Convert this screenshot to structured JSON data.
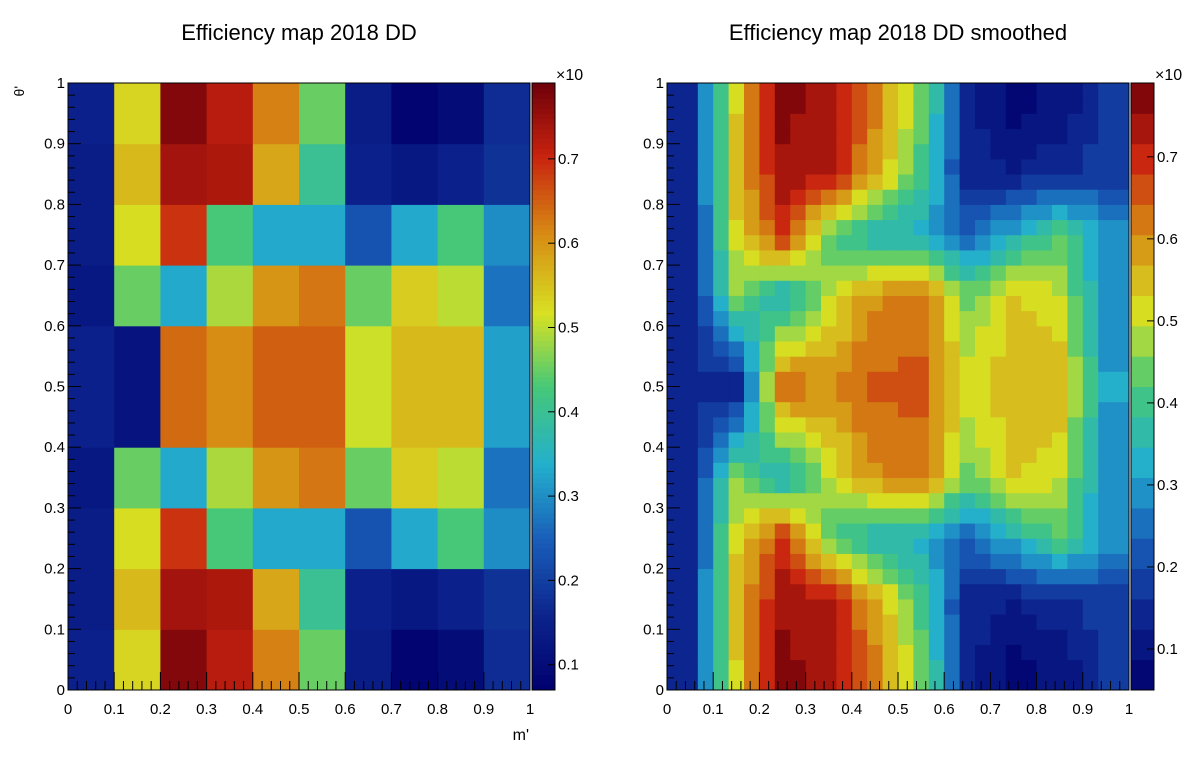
{
  "chart_data": [
    {
      "type": "heatmap",
      "title": "Efficiency map 2018 DD",
      "xlabel": "m'",
      "ylabel": "θ'",
      "xlim": [
        0,
        1
      ],
      "ylim": [
        0,
        1
      ],
      "x_ticks": [
        "0",
        "0.1",
        "0.2",
        "0.3",
        "0.4",
        "0.5",
        "0.6",
        "0.7",
        "0.8",
        "0.9",
        "1"
      ],
      "y_ticks": [
        "0",
        "0.1",
        "0.2",
        "0.3",
        "0.4",
        "0.5",
        "0.6",
        "0.7",
        "0.8",
        "0.9",
        "1"
      ],
      "colorbar": {
        "exponent_label": "×10",
        "ticks": [
          "0.1",
          "0.2",
          "0.3",
          "0.4",
          "0.5",
          "0.6",
          "0.7"
        ],
        "range": [
          0.07,
          0.79
        ]
      },
      "palette": "rainbow",
      "x_edges": [
        0,
        0.1,
        0.2,
        0.3,
        0.4,
        0.5,
        0.6,
        0.7,
        0.8,
        0.9,
        1.0
      ],
      "y_edges": [
        0,
        0.03,
        0.1,
        0.2,
        0.3,
        0.4,
        0.6,
        0.7,
        0.8,
        0.9,
        1.0
      ],
      "z": [
        [
          0.15,
          0.53,
          0.77,
          0.72,
          0.62,
          0.45,
          0.14,
          0.08,
          0.1,
          0.17
        ],
        [
          0.15,
          0.53,
          0.77,
          0.72,
          0.62,
          0.45,
          0.14,
          0.08,
          0.1,
          0.17
        ],
        [
          0.14,
          0.56,
          0.74,
          0.73,
          0.58,
          0.4,
          0.15,
          0.13,
          0.15,
          0.18
        ],
        [
          0.14,
          0.52,
          0.69,
          0.43,
          0.33,
          0.33,
          0.23,
          0.33,
          0.43,
          0.3
        ],
        [
          0.13,
          0.45,
          0.33,
          0.49,
          0.6,
          0.63,
          0.45,
          0.54,
          0.5,
          0.27
        ],
        [
          0.15,
          0.12,
          0.64,
          0.61,
          0.65,
          0.65,
          0.51,
          0.56,
          0.56,
          0.32
        ],
        [
          0.13,
          0.45,
          0.33,
          0.49,
          0.6,
          0.63,
          0.45,
          0.54,
          0.5,
          0.27
        ],
        [
          0.14,
          0.52,
          0.69,
          0.43,
          0.33,
          0.33,
          0.23,
          0.33,
          0.43,
          0.3
        ],
        [
          0.14,
          0.56,
          0.74,
          0.73,
          0.58,
          0.4,
          0.15,
          0.13,
          0.15,
          0.18
        ],
        [
          0.15,
          0.53,
          0.77,
          0.72,
          0.62,
          0.45,
          0.14,
          0.08,
          0.1,
          0.17
        ]
      ]
    },
    {
      "type": "heatmap",
      "title": "Efficiency map 2018 DD smoothed",
      "xlim": [
        0,
        1
      ],
      "ylim": [
        0,
        1
      ],
      "x_ticks": [
        "0",
        "0.1",
        "0.2",
        "0.3",
        "0.4",
        "0.5",
        "0.6",
        "0.7",
        "0.8",
        "0.9",
        "1"
      ],
      "y_ticks": [
        "0",
        "0.1",
        "0.2",
        "0.3",
        "0.4",
        "0.5",
        "0.6",
        "0.7",
        "0.8",
        "0.9",
        "1"
      ],
      "colorbar": {
        "exponent_label": "×10",
        "ticks": [
          "0.1",
          "0.2",
          "0.3",
          "0.4",
          "0.5",
          "0.6",
          "0.7"
        ],
        "range": [
          0.05,
          0.79
        ],
        "levels": 20
      },
      "palette": "rainbow",
      "grid": [
        30,
        40
      ],
      "smoothing": "bilinear interpolation of the 10×10 map"
    }
  ]
}
